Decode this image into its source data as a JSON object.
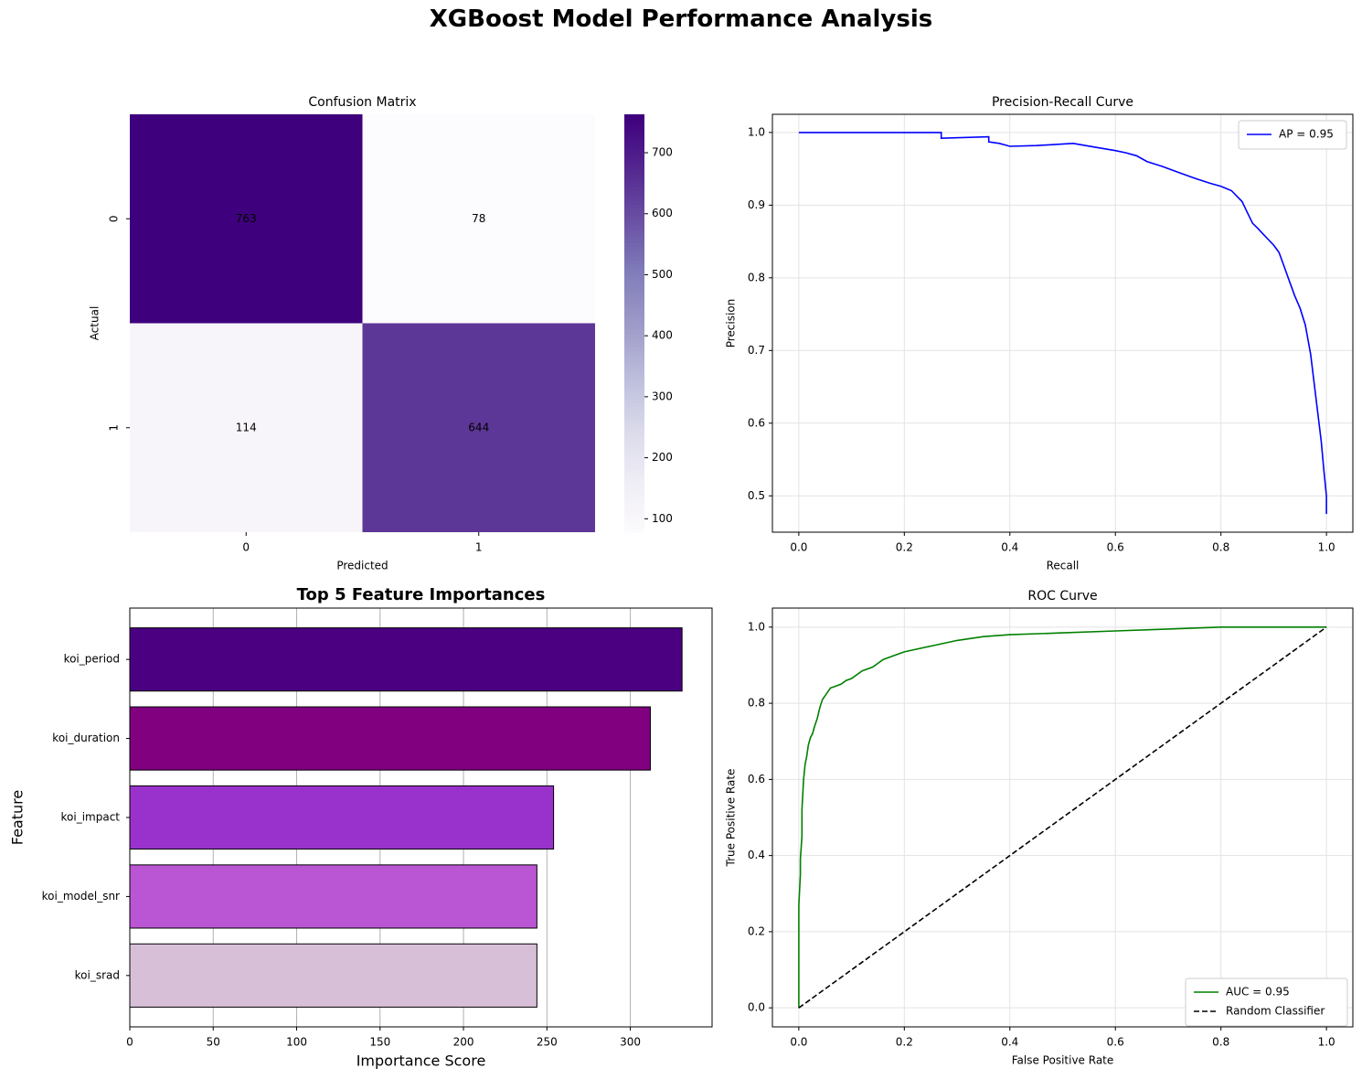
{
  "suptitle": "XGBoost Model Performance Analysis",
  "chart_data": [
    {
      "type": "heatmap",
      "title": "Confusion Matrix",
      "xlabel": "Predicted",
      "ylabel": "Actual",
      "x_categories": [
        "0",
        "1"
      ],
      "y_categories": [
        "0",
        "1"
      ],
      "values": [
        [
          763,
          78
        ],
        [
          114,
          644
        ]
      ],
      "colormap": "Purples",
      "color_range": [
        78,
        763
      ],
      "colorbar_ticks": [
        100,
        200,
        300,
        400,
        500,
        600,
        700
      ],
      "colorbar_labels": [
        "100",
        "200",
        "300",
        "400",
        "500",
        "600",
        "700"
      ],
      "cell_labels": [
        [
          "763",
          "78"
        ],
        [
          "114",
          "644"
        ]
      ]
    },
    {
      "type": "line",
      "title": "Precision-Recall Curve",
      "xlabel": "Recall",
      "ylabel": "Precision",
      "xlim": [
        -0.05,
        1.05
      ],
      "ylim": [
        0.45,
        1.025
      ],
      "xticks": [
        0.0,
        0.2,
        0.4,
        0.6,
        0.8,
        1.0
      ],
      "xtick_labels": [
        "0.0",
        "0.2",
        "0.4",
        "0.6",
        "0.8",
        "1.0"
      ],
      "yticks": [
        0.5,
        0.6,
        0.7,
        0.8,
        0.9,
        1.0
      ],
      "ytick_labels": [
        "0.5",
        "0.6",
        "0.7",
        "0.8",
        "0.9",
        "1.0"
      ],
      "grid": true,
      "legend": "top-right",
      "series": [
        {
          "name": "AP = 0.95",
          "color": "#0000ff",
          "x": [
            0.0,
            0.27,
            0.27,
            0.36,
            0.36,
            0.38,
            0.39,
            0.4,
            0.45,
            0.52,
            0.56,
            0.6,
            0.62,
            0.64,
            0.66,
            0.69,
            0.72,
            0.75,
            0.78,
            0.8,
            0.82,
            0.84,
            0.85,
            0.86,
            0.87,
            0.88,
            0.9,
            0.91,
            0.92,
            0.93,
            0.94,
            0.95,
            0.96,
            0.965,
            0.97,
            0.975,
            0.98,
            0.985,
            0.99,
            0.995,
            1.0,
            1.0
          ],
          "y": [
            1.0,
            1.0,
            0.992,
            0.994,
            0.987,
            0.985,
            0.983,
            0.981,
            0.982,
            0.985,
            0.98,
            0.975,
            0.972,
            0.968,
            0.96,
            0.953,
            0.945,
            0.937,
            0.93,
            0.926,
            0.92,
            0.905,
            0.89,
            0.875,
            0.868,
            0.86,
            0.845,
            0.835,
            0.815,
            0.795,
            0.775,
            0.758,
            0.735,
            0.715,
            0.695,
            0.665,
            0.635,
            0.605,
            0.575,
            0.535,
            0.5,
            0.475
          ]
        }
      ]
    },
    {
      "type": "bar",
      "orientation": "horizontal",
      "title": "Top 5 Feature Importances",
      "xlabel": "Importance Score",
      "ylabel": "Feature",
      "categories": [
        "koi_period",
        "koi_duration",
        "koi_impact",
        "koi_model_snr",
        "koi_srad"
      ],
      "values": [
        331,
        312,
        254,
        244,
        244
      ],
      "colors": [
        "#4b0082",
        "#800080",
        "#9932cc",
        "#ba55d3",
        "#d8bfd8"
      ],
      "xlim": [
        0,
        349
      ],
      "xticks": [
        0,
        50,
        100,
        150,
        200,
        250,
        300
      ],
      "xtick_labels": [
        "0",
        "50",
        "100",
        "150",
        "200",
        "250",
        "300"
      ],
      "grid": true
    },
    {
      "type": "line",
      "title": "ROC Curve",
      "xlabel": "False Positive Rate",
      "ylabel": "True Positive Rate",
      "xlim": [
        -0.05,
        1.05
      ],
      "ylim": [
        -0.05,
        1.05
      ],
      "xticks": [
        0.0,
        0.2,
        0.4,
        0.6,
        0.8,
        1.0
      ],
      "xtick_labels": [
        "0.0",
        "0.2",
        "0.4",
        "0.6",
        "0.8",
        "1.0"
      ],
      "yticks": [
        0.0,
        0.2,
        0.4,
        0.6,
        0.8,
        1.0
      ],
      "ytick_labels": [
        "0.0",
        "0.2",
        "0.4",
        "0.6",
        "0.8",
        "1.0"
      ],
      "grid": true,
      "legend": "bottom-right",
      "series": [
        {
          "name": "AUC = 0.95",
          "color": "#008000",
          "style": "solid",
          "x": [
            0.0,
            0.0,
            0.003,
            0.003,
            0.006,
            0.006,
            0.009,
            0.012,
            0.015,
            0.018,
            0.022,
            0.026,
            0.03,
            0.035,
            0.04,
            0.045,
            0.05,
            0.055,
            0.06,
            0.07,
            0.08,
            0.09,
            0.1,
            0.12,
            0.14,
            0.16,
            0.18,
            0.2,
            0.25,
            0.3,
            0.35,
            0.4,
            0.5,
            0.6,
            0.7,
            0.8,
            0.9,
            1.0
          ],
          "y": [
            0.0,
            0.27,
            0.35,
            0.39,
            0.45,
            0.52,
            0.6,
            0.64,
            0.66,
            0.69,
            0.71,
            0.72,
            0.74,
            0.76,
            0.79,
            0.81,
            0.82,
            0.83,
            0.84,
            0.845,
            0.85,
            0.86,
            0.865,
            0.885,
            0.895,
            0.915,
            0.925,
            0.935,
            0.95,
            0.965,
            0.975,
            0.98,
            0.985,
            0.99,
            0.995,
            1.0,
            1.0,
            1.0
          ]
        },
        {
          "name": "Random Classifier",
          "color": "#000000",
          "style": "dashed",
          "x": [
            0.0,
            1.0
          ],
          "y": [
            0.0,
            1.0
          ]
        }
      ]
    }
  ]
}
